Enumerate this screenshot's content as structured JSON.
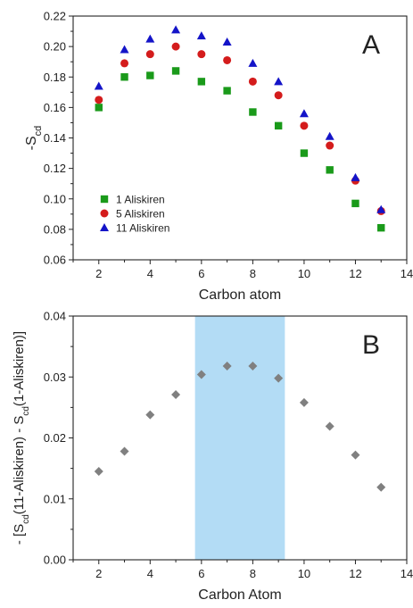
{
  "chart_data": [
    {
      "type": "scatter",
      "panel_label": "A",
      "xlabel": "Carbon atom",
      "ylabel": "-S",
      "ylabel_subscript": "cd",
      "xlim": [
        1,
        14
      ],
      "ylim": [
        0.06,
        0.22
      ],
      "xticks": [
        2,
        4,
        6,
        8,
        10,
        12,
        14
      ],
      "yticks": [
        0.06,
        0.08,
        0.1,
        0.12,
        0.14,
        0.16,
        0.18,
        0.2,
        0.22
      ],
      "ytick_labels": [
        "0.06",
        "0.08",
        "0.10",
        "0.12",
        "0.14",
        "0.16",
        "0.18",
        "0.20",
        "0.22"
      ],
      "legend_position": "bottom-left",
      "series": [
        {
          "name": "1  Aliskiren",
          "marker": "square",
          "color": "#1a9a1a",
          "x": [
            2,
            3,
            4,
            5,
            6,
            7,
            8,
            9,
            10,
            11,
            12,
            13
          ],
          "y": [
            0.16,
            0.18,
            0.181,
            0.184,
            0.177,
            0.171,
            0.157,
            0.148,
            0.13,
            0.119,
            0.097,
            0.081
          ]
        },
        {
          "name": "5  Aliskiren",
          "marker": "circle",
          "color": "#d41c1c",
          "x": [
            2,
            3,
            4,
            5,
            6,
            7,
            8,
            9,
            10,
            11,
            12,
            13
          ],
          "y": [
            0.165,
            0.189,
            0.195,
            0.2,
            0.195,
            0.191,
            0.177,
            0.168,
            0.148,
            0.135,
            0.112,
            0.092
          ]
        },
        {
          "name": "11 Aliskiren",
          "marker": "triangle",
          "color": "#1414c8",
          "x": [
            2,
            3,
            4,
            5,
            6,
            7,
            8,
            9,
            10,
            11,
            12,
            13
          ],
          "y": [
            0.174,
            0.198,
            0.205,
            0.211,
            0.207,
            0.203,
            0.189,
            0.177,
            0.156,
            0.141,
            0.114,
            0.093
          ]
        }
      ]
    },
    {
      "type": "scatter",
      "panel_label": "B",
      "xlabel": "Carbon Atom",
      "ylabel_parts": [
        "- [S",
        "cd",
        "(11-Aliskiren) - S",
        "cd",
        "(1-Aliskiren)]"
      ],
      "xlim": [
        1,
        14
      ],
      "ylim": [
        0.0,
        0.04
      ],
      "xticks": [
        2,
        4,
        6,
        8,
        10,
        12,
        14
      ],
      "yticks": [
        0.0,
        0.01,
        0.02,
        0.03,
        0.04
      ],
      "ytick_labels": [
        "0.00",
        "0.01",
        "0.02",
        "0.03",
        "0.04"
      ],
      "highlight_region": {
        "x": [
          5.75,
          9.25
        ],
        "color": "#b3dcf5"
      },
      "series": [
        {
          "marker": "diamond",
          "color": "#808080",
          "x": [
            2,
            3,
            4,
            5,
            6,
            7,
            8,
            9,
            10,
            11,
            12,
            13
          ],
          "y": [
            0.0145,
            0.0178,
            0.0238,
            0.0271,
            0.0304,
            0.0318,
            0.0318,
            0.0298,
            0.0258,
            0.0219,
            0.0172,
            0.0119
          ]
        }
      ]
    }
  ]
}
